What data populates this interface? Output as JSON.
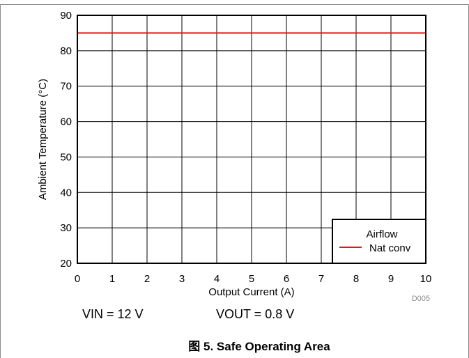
{
  "chart_data": {
    "type": "line",
    "title": "",
    "xlabel": "Output Current (A)",
    "ylabel": "Ambient Temperature (°C)",
    "xlim": [
      0,
      10
    ],
    "ylim": [
      20,
      90
    ],
    "xticks": [
      0,
      1,
      2,
      3,
      4,
      5,
      6,
      7,
      8,
      9,
      10
    ],
    "yticks": [
      20,
      30,
      40,
      50,
      60,
      70,
      80,
      90
    ],
    "grid": true,
    "legend": {
      "title": "Airflow",
      "position": "bottom-right"
    },
    "series": [
      {
        "name": "Nat conv",
        "color": "#e8141b",
        "x": [
          0,
          10
        ],
        "y": [
          85,
          85
        ]
      }
    ]
  },
  "conditions": {
    "vin": "VIN = 12 V",
    "vout": "VOUT = 0.8 V"
  },
  "figure_code": "D005",
  "caption": "图 5. Safe Operating Area",
  "colors": {
    "frame_border": "#8a8a8a",
    "grid": "#000000",
    "axis": "#000000"
  }
}
